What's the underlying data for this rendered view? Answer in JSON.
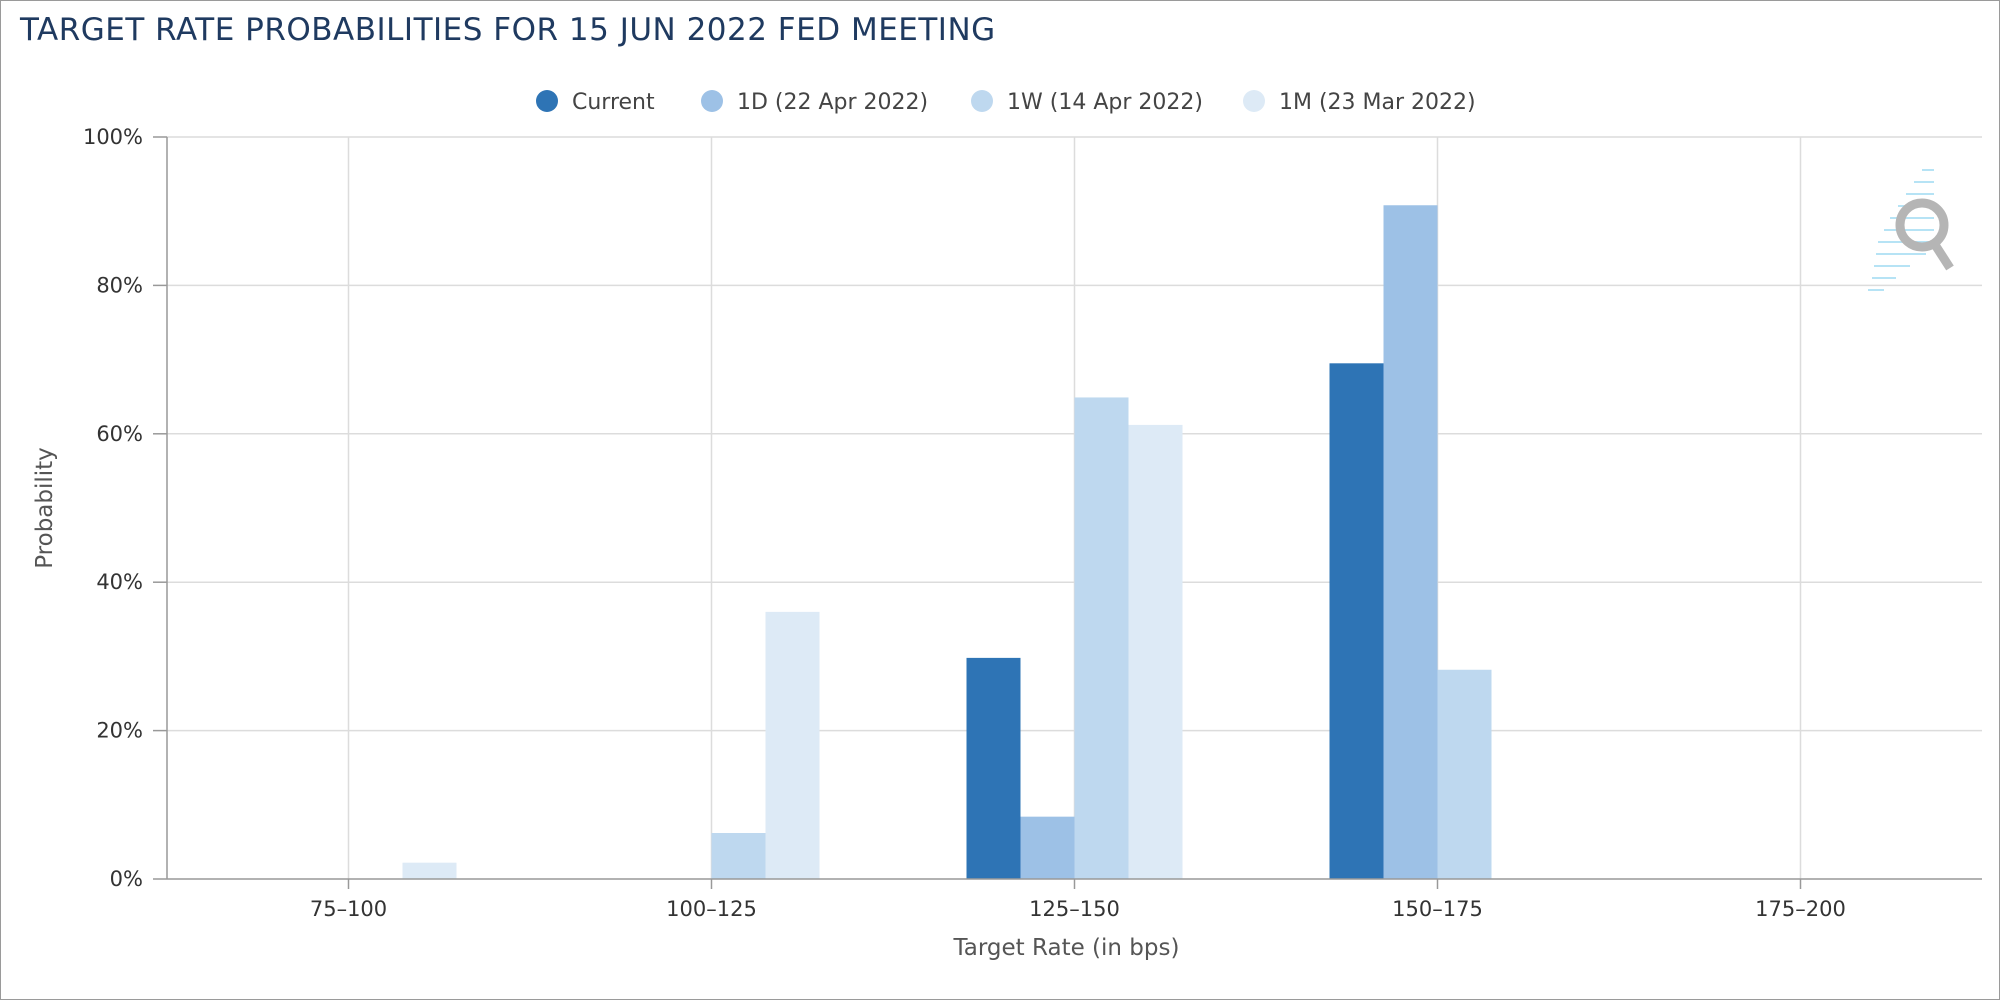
{
  "title": "TARGET RATE PROBABILITIES FOR 15 JUN 2022 FED MEETING",
  "chart_data": {
    "type": "bar",
    "title": "TARGET RATE PROBABILITIES FOR 15 JUN 2022 FED MEETING",
    "xlabel": "Target Rate (in bps)",
    "ylabel": "Probability",
    "categories": [
      "75-100",
      "100-125",
      "125-150",
      "150-175",
      "175-200"
    ],
    "ylim": [
      0,
      100
    ],
    "yticks": [
      "0%",
      "20%",
      "40%",
      "60%",
      "80%",
      "100%"
    ],
    "grid": true,
    "legend_position": "top-center",
    "series": [
      {
        "name": "Current",
        "color": "#2e74b5",
        "values": [
          0,
          0,
          29.8,
          69.5,
          0
        ]
      },
      {
        "name": "1D (22 Apr 2022)",
        "color": "#9dc1e6",
        "values": [
          0,
          0,
          8.4,
          90.8,
          0
        ]
      },
      {
        "name": "1W (14 Apr 2022)",
        "color": "#bed8ef",
        "values": [
          0,
          6.2,
          64.9,
          28.2,
          0
        ]
      },
      {
        "name": "1M (23 Mar 2022)",
        "color": "#ddeaf6",
        "values": [
          2.2,
          36.0,
          61.2,
          0,
          0
        ]
      }
    ]
  }
}
